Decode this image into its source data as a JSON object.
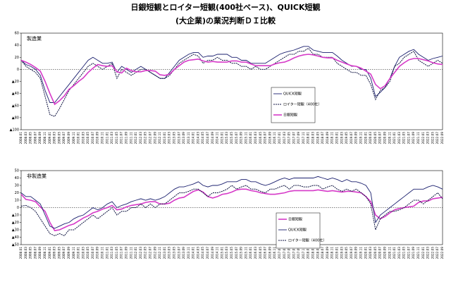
{
  "title": "日銀短観とロイター短観(400社ベース)、QUICK短観",
  "subtitle": "(大企業)の業況判断ＤＩ比較",
  "chart_data": [
    {
      "type": "line",
      "title": "製造業",
      "ylim": [
        -100,
        60
      ],
      "yticks": [
        60,
        40,
        20,
        0,
        {
          "value": -20,
          "label": "▲20"
        },
        {
          "value": -40,
          "label": "▲40"
        },
        {
          "value": -60,
          "label": "▲60"
        },
        {
          "value": -80,
          "label": "▲80"
        },
        {
          "value": -100,
          "label": "▲100"
        }
      ],
      "categories": [
        "2008.01",
        "2008.03",
        "2008.05",
        "2008.07",
        "2008.09",
        "2008.11",
        "2009.01",
        "2009.03",
        "2009.05",
        "2009.07",
        "2009.09",
        "2009.11",
        "2010.01",
        "2010.03",
        "2010.05",
        "2010.07",
        "2010.09",
        "2010.11",
        "2011.01",
        "2011.03",
        "2011.05",
        "2011.07",
        "2011.09",
        "2011.11",
        "2012.01",
        "2012.03",
        "2012.05",
        "2012.07",
        "2012.09",
        "2012.11",
        "2013.01",
        "2013.03",
        "2013.05",
        "2013.07",
        "2013.09",
        "2013.11",
        "2014.01",
        "2014.03",
        "2014.05",
        "2014.07",
        "2014.09",
        "2014.11",
        "2015.01",
        "2015.03",
        "2015.05",
        "2015.07",
        "2015.09",
        "2015.11",
        "2016.01",
        "2016.03",
        "2016.05",
        "2016.07",
        "2016.09",
        "2016.11",
        "2017.01",
        "2017.03",
        "2017.05",
        "2017.07",
        "2017.09",
        "2017.11",
        "2018.01",
        "2018.03",
        "2018.05",
        "2018.07",
        "2018.09",
        "2018.11",
        "2019.01",
        "2019.03",
        "2019.05",
        "2019.07",
        "2019.09",
        "2019.11",
        "2020.01",
        "2020.03",
        "2020.05",
        "2020.07",
        "2020.09",
        "2020.11",
        "2021.01",
        "2021.03",
        "2021.05",
        "2021.07",
        "2021.09",
        "2021.11",
        "2022.01",
        "2022.03",
        "2022.05",
        "2022.07",
        "2022.09"
      ],
      "series": [
        {
          "name": "QUICK短観",
          "color": "#1a1f6e",
          "style": "solid",
          "values": [
            15,
            8,
            5,
            0,
            -10,
            -35,
            -55,
            -55,
            -45,
            -35,
            -25,
            -15,
            -5,
            5,
            15,
            20,
            15,
            10,
            10,
            12,
            -5,
            5,
            0,
            -5,
            0,
            5,
            0,
            -5,
            -10,
            -15,
            -15,
            -5,
            5,
            15,
            20,
            25,
            28,
            28,
            20,
            22,
            22,
            25,
            25,
            25,
            20,
            20,
            15,
            15,
            10,
            10,
            10,
            10,
            15,
            20,
            25,
            28,
            30,
            32,
            35,
            38,
            38,
            32,
            30,
            28,
            28,
            28,
            22,
            15,
            10,
            5,
            5,
            0,
            0,
            -15,
            -45,
            -38,
            -30,
            -15,
            5,
            20,
            25,
            30,
            33,
            25,
            20,
            15,
            18,
            20,
            22
          ]
        },
        {
          "name": "ロイター短観（400社）",
          "color": "#0d1240",
          "style": "dashed",
          "values": [
            15,
            5,
            0,
            -5,
            -15,
            -45,
            -75,
            -78,
            -65,
            -50,
            -35,
            -25,
            -15,
            -5,
            5,
            10,
            5,
            0,
            5,
            10,
            -15,
            0,
            -5,
            -10,
            -5,
            0,
            0,
            -5,
            -10,
            -15,
            -15,
            -10,
            0,
            10,
            15,
            20,
            25,
            22,
            10,
            15,
            15,
            20,
            15,
            15,
            10,
            10,
            5,
            5,
            0,
            5,
            0,
            0,
            5,
            10,
            15,
            20,
            25,
            25,
            30,
            30,
            35,
            25,
            25,
            20,
            20,
            20,
            10,
            5,
            0,
            -5,
            -5,
            -10,
            -10,
            -25,
            -50,
            -35,
            -30,
            -20,
            5,
            10,
            20,
            25,
            30,
            15,
            10,
            5,
            10,
            15,
            10
          ]
        },
        {
          "name": "日銀短観",
          "color": "#d63ac8",
          "style": "thick",
          "values": [
            15,
            12,
            8,
            3,
            -3,
            -20,
            -40,
            -58,
            -52,
            -44,
            -33,
            -27,
            -20,
            -14,
            -5,
            2,
            8,
            6,
            5,
            6,
            -4,
            -6,
            2,
            -2,
            -4,
            -4,
            -2,
            -2,
            -3,
            -9,
            -10,
            -8,
            0,
            6,
            12,
            15,
            16,
            17,
            14,
            12,
            13,
            12,
            12,
            12,
            14,
            14,
            12,
            12,
            9,
            6,
            6,
            6,
            6,
            9,
            11,
            12,
            15,
            19,
            22,
            24,
            25,
            24,
            22,
            20,
            19,
            19,
            15,
            12,
            9,
            6,
            5,
            2,
            -3,
            -8,
            -25,
            -32,
            -27,
            -15,
            -5,
            5,
            11,
            16,
            18,
            18,
            16,
            14,
            11,
            9,
            8
          ]
        }
      ]
    },
    {
      "type": "line",
      "title": "非製造業",
      "ylim": [
        -50,
        50
      ],
      "yticks": [
        50,
        40,
        30,
        20,
        10,
        0,
        {
          "value": -10,
          "label": "▲10"
        },
        {
          "value": -20,
          "label": "▲20"
        },
        {
          "value": -30,
          "label": "▲30"
        },
        {
          "value": -40,
          "label": "▲40"
        },
        {
          "value": -50,
          "label": "▲50"
        }
      ],
      "categories": [
        "2008.01",
        "2008.03",
        "2008.05",
        "2008.07",
        "2008.09",
        "2008.11",
        "2009.01",
        "2009.03",
        "2009.05",
        "2009.07",
        "2009.09",
        "2009.11",
        "2010.01",
        "2010.03",
        "2010.05",
        "2010.07",
        "2010.09",
        "2010.11",
        "2011.01",
        "2011.03",
        "2011.05",
        "2011.07",
        "2011.09",
        "2011.11",
        "2012.01",
        "2012.03",
        "2012.05",
        "2012.07",
        "2012.09",
        "2012.11",
        "2013.01",
        "2013.03",
        "2013.05",
        "2013.07",
        "2013.09",
        "2013.11",
        "2014.01",
        "2014.03",
        "2014.05",
        "2014.07",
        "2014.09",
        "2014.11",
        "2015.01",
        "2015.03",
        "2015.05",
        "2015.07",
        "2015.09",
        "2015.11",
        "2016.01",
        "2016.03",
        "2016.05",
        "2016.07",
        "2016.09",
        "2016.11",
        "2017.01",
        "2017.03",
        "2017.05",
        "2017.07",
        "2017.09",
        "2017.11",
        "2018.01",
        "2018.03",
        "2018.05",
        "2018.07",
        "2018.09",
        "2018.11",
        "2019.01",
        "2019.03",
        "2019.05",
        "2019.07",
        "2019.09",
        "2019.11",
        "2020.01",
        "2020.03",
        "2020.05",
        "2020.07",
        "2020.09",
        "2020.11",
        "2021.01",
        "2021.03",
        "2021.05",
        "2021.07",
        "2021.09",
        "2021.11",
        "2022.01",
        "2022.03",
        "2022.05",
        "2022.07",
        "2022.09"
      ],
      "series": [
        {
          "name": "日銀短観",
          "color": "#d63ac8",
          "style": "thick",
          "values": [
            18,
            11,
            10,
            8,
            1,
            -5,
            -20,
            -31,
            -30,
            -27,
            -24,
            -22,
            -18,
            -14,
            -11,
            -7,
            -5,
            -2,
            0,
            3,
            -3,
            -2,
            1,
            3,
            4,
            5,
            7,
            8,
            8,
            5,
            5,
            6,
            10,
            13,
            14,
            18,
            22,
            24,
            21,
            15,
            13,
            15,
            18,
            19,
            21,
            24,
            25,
            25,
            23,
            22,
            20,
            19,
            18,
            18,
            19,
            20,
            22,
            23,
            23,
            23,
            23,
            23,
            24,
            23,
            22,
            23,
            22,
            21,
            22,
            22,
            21,
            20,
            15,
            8,
            -10,
            -15,
            -12,
            -7,
            -3,
            -1,
            0,
            1,
            2,
            7,
            9,
            9,
            12,
            13,
            14
          ]
        },
        {
          "name": "QUICK短観",
          "color": "#1a1f6e",
          "style": "solid",
          "values": [
            20,
            15,
            15,
            10,
            5,
            -10,
            -25,
            -28,
            -25,
            -22,
            -20,
            -15,
            -12,
            -10,
            -5,
            0,
            -3,
            0,
            5,
            8,
            0,
            3,
            5,
            8,
            10,
            12,
            10,
            12,
            10,
            12,
            15,
            20,
            25,
            28,
            28,
            30,
            32,
            35,
            30,
            28,
            30,
            30,
            32,
            35,
            35,
            35,
            38,
            38,
            35,
            35,
            32,
            30,
            32,
            35,
            38,
            40,
            38,
            40,
            40,
            40,
            40,
            40,
            42,
            40,
            38,
            40,
            38,
            35,
            38,
            35,
            35,
            33,
            30,
            20,
            -20,
            -10,
            -5,
            0,
            5,
            10,
            15,
            20,
            25,
            25,
            25,
            28,
            30,
            28,
            25
          ]
        },
        {
          "name": "ロイター短観（400社）",
          "color": "#0d1240",
          "style": "dashed",
          "values": [
            2,
            3,
            0,
            -5,
            -15,
            -25,
            -35,
            -38,
            -35,
            -38,
            -30,
            -30,
            -25,
            -20,
            -15,
            -10,
            -15,
            -10,
            -5,
            0,
            -10,
            -5,
            -5,
            0,
            0,
            5,
            0,
            5,
            0,
            5,
            5,
            10,
            15,
            20,
            20,
            22,
            25,
            25,
            20,
            15,
            20,
            20,
            22,
            25,
            30,
            25,
            28,
            30,
            25,
            25,
            22,
            20,
            25,
            25,
            28,
            30,
            25,
            30,
            30,
            28,
            28,
            30,
            30,
            25,
            28,
            30,
            25,
            22,
            25,
            22,
            25,
            20,
            15,
            5,
            -30,
            -15,
            -10,
            -5,
            -5,
            -3,
            0,
            5,
            10,
            10,
            5,
            10,
            15,
            20,
            12
          ]
        }
      ]
    }
  ]
}
